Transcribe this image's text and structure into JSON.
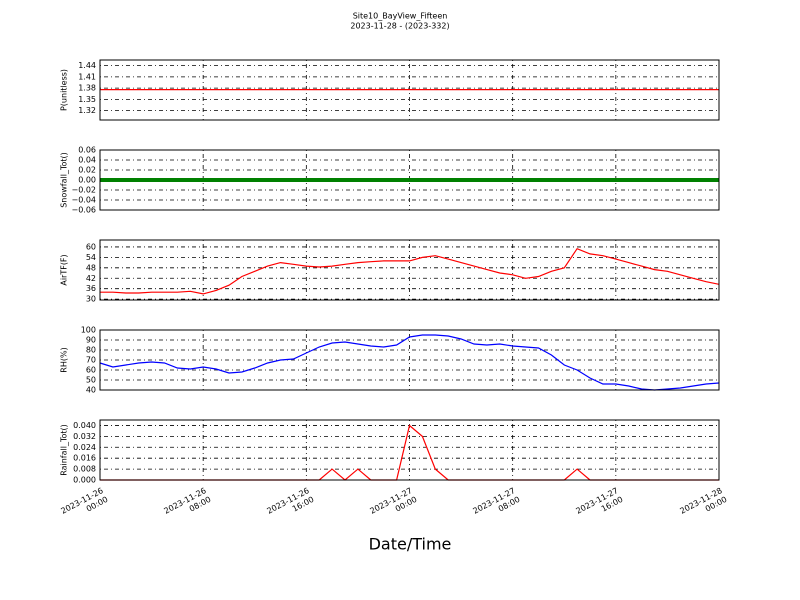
{
  "title": "Site10_BayView_Fifteen",
  "subtitle": "2023-11-28 - (2023-332)",
  "xlabel": "Date/Time",
  "x": [
    "2023-11-26 00:00",
    "2023-11-26 01:00",
    "2023-11-26 02:00",
    "2023-11-26 03:00",
    "2023-11-26 04:00",
    "2023-11-26 05:00",
    "2023-11-26 06:00",
    "2023-11-26 07:00",
    "2023-11-26 08:00",
    "2023-11-26 09:00",
    "2023-11-26 10:00",
    "2023-11-26 11:00",
    "2023-11-26 12:00",
    "2023-11-26 13:00",
    "2023-11-26 14:00",
    "2023-11-26 15:00",
    "2023-11-26 16:00",
    "2023-11-26 17:00",
    "2023-11-26 18:00",
    "2023-11-26 19:00",
    "2023-11-26 20:00",
    "2023-11-26 21:00",
    "2023-11-26 22:00",
    "2023-11-26 23:00",
    "2023-11-27 00:00",
    "2023-11-27 01:00",
    "2023-11-27 02:00",
    "2023-11-27 03:00",
    "2023-11-27 04:00",
    "2023-11-27 05:00",
    "2023-11-27 06:00",
    "2023-11-27 07:00",
    "2023-11-27 08:00",
    "2023-11-27 09:00",
    "2023-11-27 10:00",
    "2023-11-27 11:00",
    "2023-11-27 12:00",
    "2023-11-27 13:00",
    "2023-11-27 14:00",
    "2023-11-27 15:00",
    "2023-11-27 16:00",
    "2023-11-27 17:00",
    "2023-11-27 18:00",
    "2023-11-27 19:00",
    "2023-11-27 20:00",
    "2023-11-27 21:00",
    "2023-11-27 22:00",
    "2023-11-27 23:00",
    "2023-11-28 00:00"
  ],
  "xlim": [
    "2023-11-26 00:00",
    "2023-11-28 00:00"
  ],
  "xticks": [
    {
      "value": "2023-11-26 00:00",
      "label": "2023-11-26\n00:00"
    },
    {
      "value": "2023-11-26 08:00",
      "label": "2023-11-26\n08:00"
    },
    {
      "value": "2023-11-26 16:00",
      "label": "2023-11-26\n16:00"
    },
    {
      "value": "2023-11-27 00:00",
      "label": "2023-11-27\n00:00"
    },
    {
      "value": "2023-11-27 08:00",
      "label": "2023-11-27\n08:00"
    },
    {
      "value": "2023-11-27 16:00",
      "label": "2023-11-27\n16:00"
    },
    {
      "value": "2023-11-28 00:00",
      "label": "2023-11-28\n00:00"
    }
  ],
  "grid": true,
  "chart_data": [
    {
      "type": "line",
      "ylabel": "P(unitless)",
      "color": "#ff0000",
      "ylim": [
        1.295,
        1.455
      ],
      "yticks": [
        1.32,
        1.35,
        1.38,
        1.41,
        1.44
      ],
      "values": [
        1.376,
        1.376,
        1.376,
        1.376,
        1.376,
        1.376,
        1.376,
        1.376,
        1.376,
        1.376,
        1.376,
        1.376,
        1.376,
        1.376,
        1.376,
        1.376,
        1.376,
        1.376,
        1.376,
        1.376,
        1.376,
        1.376,
        1.376,
        1.376,
        1.376,
        1.376,
        1.376,
        1.376,
        1.376,
        1.376,
        1.376,
        1.376,
        1.376,
        1.376,
        1.376,
        1.376,
        1.376,
        1.376,
        1.376,
        1.376,
        1.376,
        1.376,
        1.376,
        1.376,
        1.376,
        1.376,
        1.376,
        1.376,
        1.376
      ]
    },
    {
      "type": "line",
      "ylabel": "Snowfall_Tot()",
      "color": "#008000",
      "ylim": [
        -0.06,
        0.06
      ],
      "yticks": [
        {
          "value": -0.06,
          "label": "−0.06"
        },
        {
          "value": -0.04,
          "label": "−0.04"
        },
        {
          "value": -0.02,
          "label": "−0.02"
        },
        {
          "value": 0,
          "label": "0.00"
        },
        0.02,
        0.04,
        0.06
      ],
      "values": [
        0,
        0,
        0,
        0,
        0,
        0,
        0,
        0,
        0,
        0,
        0,
        0,
        0,
        0,
        0,
        0,
        0,
        0,
        0,
        0,
        0,
        0,
        0,
        0,
        0,
        0,
        0,
        0,
        0,
        0,
        0,
        0,
        0,
        0,
        0,
        0,
        0,
        0,
        0,
        0,
        0,
        0,
        0,
        0,
        0,
        0,
        0,
        0,
        0
      ]
    },
    {
      "type": "line",
      "ylabel": "AirTF(F)",
      "color": "#ff0000",
      "ylim": [
        29.5,
        64
      ],
      "yticks": [
        30,
        36,
        42,
        48,
        54,
        60
      ],
      "values": [
        34,
        34,
        33.5,
        33.5,
        34,
        34,
        34,
        34.5,
        33,
        35,
        38,
        43,
        46,
        49,
        51,
        50,
        49,
        48.5,
        49,
        50,
        51,
        51.5,
        52,
        52,
        52,
        54,
        55,
        53,
        51,
        49,
        47,
        45,
        44,
        42,
        43,
        46,
        48,
        59,
        56,
        55,
        53,
        51,
        49,
        47,
        46,
        44,
        42,
        40,
        38.5
      ]
    },
    {
      "type": "line",
      "ylabel": "RH(%)",
      "color": "#0000ff",
      "ylim": [
        40,
        100
      ],
      "yticks": [
        40,
        50,
        60,
        70,
        80,
        90,
        100
      ],
      "values": [
        67,
        63,
        65,
        67,
        68,
        67,
        62,
        61,
        63,
        61,
        57,
        58,
        62,
        67,
        70,
        71,
        77,
        83,
        87,
        88,
        86,
        84,
        83,
        85,
        93,
        95,
        95,
        94,
        91,
        86,
        85,
        86,
        84,
        83,
        82,
        75,
        65,
        60,
        52,
        46,
        46,
        44,
        41,
        40,
        41,
        42,
        44,
        46,
        47
      ]
    },
    {
      "type": "line",
      "ylabel": "Rainfall_Tot()",
      "color": "#ff0000",
      "ylim": [
        0,
        0.044
      ],
      "yticks": [
        {
          "value": 0,
          "label": "0.000"
        },
        {
          "value": 0.008,
          "label": "0.008"
        },
        {
          "value": 0.016,
          "label": "0.016"
        },
        {
          "value": 0.024,
          "label": "0.024"
        },
        {
          "value": 0.032,
          "label": "0.032"
        },
        {
          "value": 0.04,
          "label": "0.040"
        }
      ],
      "values": [
        0,
        0,
        0,
        0,
        0,
        0,
        0,
        0,
        0,
        0,
        0,
        0,
        0,
        0,
        0,
        0,
        0,
        0,
        0.008,
        0,
        0.008,
        0,
        0,
        0,
        0.04,
        0.032,
        0.008,
        0,
        0,
        0,
        0,
        0,
        0,
        0,
        0,
        0,
        0,
        0.008,
        0,
        0,
        0,
        0,
        0,
        0,
        0,
        0,
        0,
        0,
        0
      ]
    }
  ]
}
